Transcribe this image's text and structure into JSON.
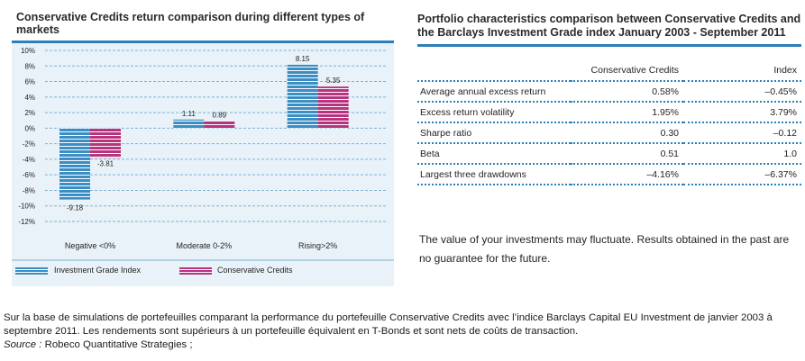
{
  "chart_data": {
    "type": "bar",
    "title": "Conservative Credits return comparison during different types of markets",
    "categories": [
      "Negative <0%",
      "Moderate 0-2%",
      "Rising>2%"
    ],
    "series": [
      {
        "name": "Investment Grade Index",
        "values": [
          -9.18,
          1.11,
          8.15
        ],
        "labels": [
          "-9.18",
          "1.11",
          "8.15"
        ],
        "color": "#3b8ec4"
      },
      {
        "name": "Conservative Credits",
        "values": [
          -3.81,
          0.89,
          5.35
        ],
        "labels": [
          "-3.81",
          "0.89",
          "5.35"
        ],
        "color": "#b8337d"
      }
    ],
    "ylim": [
      -12,
      10
    ],
    "yticks": [
      "10%",
      "8%",
      "6%",
      "4%",
      "2%",
      "0%",
      "-2%",
      "-4%",
      "-6%",
      "-8%",
      "-10%",
      "-12%"
    ],
    "grid": true,
    "legend": "bottom"
  },
  "table": {
    "title": "Portfolio characteristics comparison between Conservative Credits and the Barclays Investment Grade index January 2003 - September 2011",
    "headers": [
      "",
      "Conservative Credits",
      "Index"
    ],
    "rows": [
      [
        "Average annual excess return",
        "0.58%",
        "–0.45%"
      ],
      [
        "Excess return volatility",
        "1.95%",
        "3.79%"
      ],
      [
        "Sharpe ratio",
        "0.30",
        "–0.12"
      ],
      [
        "Beta",
        "0.51",
        "1.0"
      ],
      [
        "Largest three drawdowns",
        "–4.16%",
        "–6.37%"
      ]
    ]
  },
  "disclaimer": "The value of your investments may fluctuate. Results obtained in the past are no guarantee for the future.",
  "footnote": {
    "body": "Sur la base de simulations de portefeuilles comparant la performance du portefeuille Conservative Credits avec l’indice Barclays Capital EU Investment de janvier 2003 à septembre 2011. Les rendements sont supérieurs à un portefeuille équivalent en T-Bonds et sont nets de coûts de transaction.",
    "source_label": "Source :",
    "source_text": " Robeco Quantitative Strategies ;"
  }
}
